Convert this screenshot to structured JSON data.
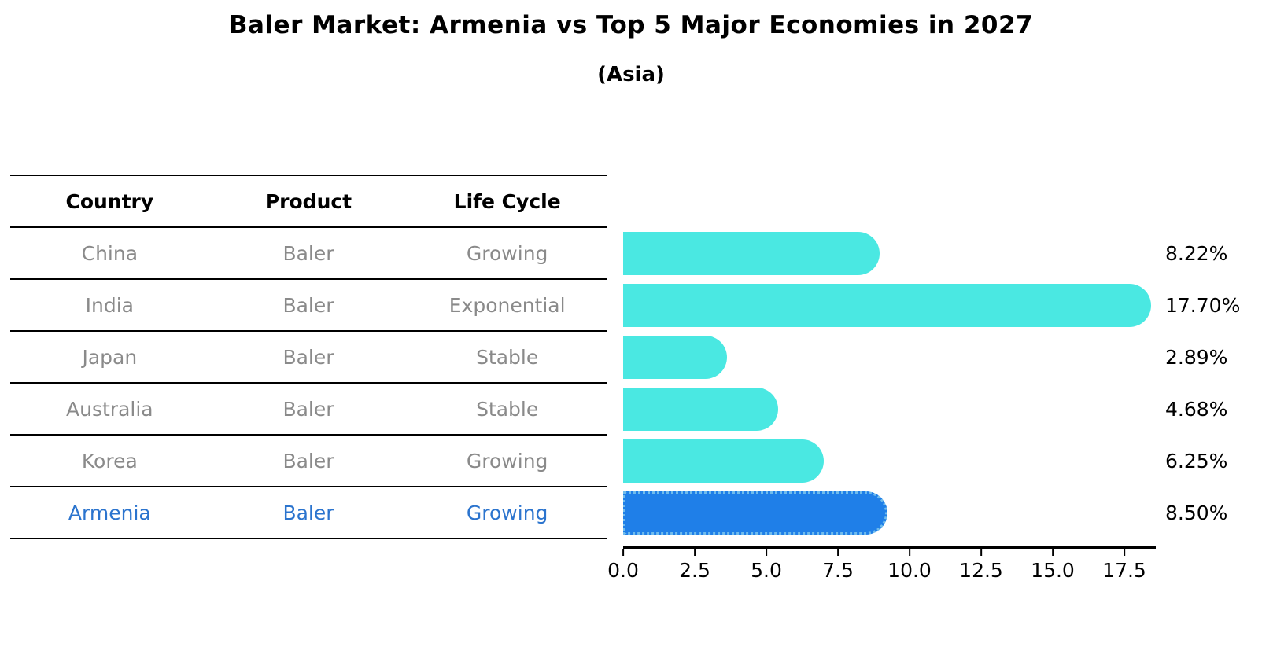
{
  "title": "Baler Market: Armenia vs Top 5 Major Economies in 2027",
  "subtitle": "(Asia)",
  "table": {
    "headers": [
      "Country",
      "Product",
      "Life Cycle"
    ],
    "rows": [
      {
        "country": "China",
        "product": "Baler",
        "life_cycle": "Growing",
        "highlight": false
      },
      {
        "country": "India",
        "product": "Baler",
        "life_cycle": "Exponential",
        "highlight": false
      },
      {
        "country": "Japan",
        "product": "Baler",
        "life_cycle": "Stable",
        "highlight": false
      },
      {
        "country": "Australia",
        "product": "Baler",
        "life_cycle": "Stable",
        "highlight": false
      },
      {
        "country": "Korea",
        "product": "Baler",
        "life_cycle": "Growing",
        "highlight": false
      },
      {
        "country": "Armenia",
        "product": "Baler",
        "life_cycle": "Growing",
        "highlight": true
      }
    ]
  },
  "chart_data": {
    "type": "bar",
    "orientation": "horizontal",
    "title": "Baler Market: Armenia vs Top 5 Major Economies in 2027",
    "subtitle": "(Asia)",
    "categories": [
      "China",
      "India",
      "Japan",
      "Australia",
      "Korea",
      "Armenia"
    ],
    "values": [
      8.22,
      17.7,
      2.89,
      4.68,
      6.25,
      8.5
    ],
    "value_labels": [
      "8.22%",
      "17.70%",
      "2.89%",
      "4.68%",
      "6.25%",
      "8.50%"
    ],
    "x_ticks": [
      "0.0",
      "2.5",
      "5.0",
      "7.5",
      "10.0",
      "12.5",
      "15.0",
      "17.5"
    ],
    "x_tick_values": [
      0,
      2.5,
      5,
      7.5,
      10,
      12.5,
      15,
      17.5
    ],
    "xlim": [
      0,
      18.57
    ],
    "xlabel": "",
    "ylabel": "",
    "grid": false,
    "legend": false,
    "highlight_index": 5
  },
  "colors": {
    "bar": "#4AE8E2",
    "highlight_bar": "#1F7FE8",
    "highlight_bar_border": "#70BCEC",
    "highlight_text": "#2B74CE",
    "table_text": "#8A8A8A",
    "header_text": "#000000",
    "axis": "#000000",
    "background": "#FFFFFF"
  }
}
